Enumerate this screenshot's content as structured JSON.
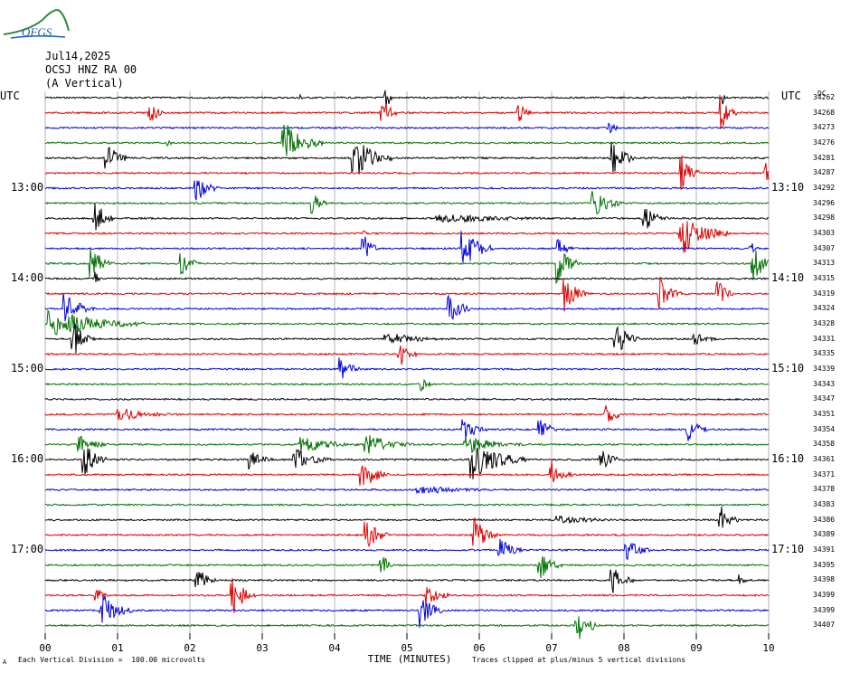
{
  "logo_text": "OFGS",
  "header": {
    "date": "Jul14,2025",
    "station": "OCSJ HNZ RA 00",
    "component": "(A Vertical)"
  },
  "utc_left": "UTC",
  "utc_right": "UTC",
  "right_col_header": "DC",
  "left_time_labels": [
    "13:00",
    "14:00",
    "15:00",
    "16:00",
    "17:00"
  ],
  "right_time_labels": [
    "13:10",
    "14:10",
    "15:10",
    "16:10",
    "17:10"
  ],
  "x_tick_labels": [
    "00",
    "01",
    "02",
    "03",
    "04",
    "05",
    "06",
    "07",
    "08",
    "09",
    "10"
  ],
  "x_axis_title": "TIME (MINUTES)",
  "footer_left": "Each Vertical Division =  100.00 microvolts",
  "footer_right": "Traces clipped at plus/minus 5 vertical divisions",
  "corner_mark": "A",
  "colors": {
    "black": "#000000",
    "red": "#e00000",
    "blue": "#0000e0",
    "green": "#007000",
    "grid": "#808080"
  },
  "chart_data": {
    "type": "line",
    "title": "OCSJ HNZ RA 00",
    "xlabel": "TIME (MINUTES)",
    "xlim": [
      0,
      10
    ],
    "trace_minutes": 10,
    "color_cycle": [
      "black",
      "red",
      "blue",
      "green"
    ],
    "trace_dc_values": [
      "34262",
      "34268",
      "34273",
      "34276",
      "34281",
      "34287",
      "34292",
      "34296",
      "34298",
      "34303",
      "34307",
      "34313",
      "34315",
      "34319",
      "34324",
      "34328",
      "34331",
      "34335",
      "34339",
      "34343",
      "34347",
      "34351",
      "34354",
      "34358",
      "34361",
      "34371",
      "34378",
      "34383",
      "34386",
      "34389",
      "34391",
      "34395",
      "34398",
      "34399",
      "34399",
      "34407"
    ],
    "events": [
      {
        "trace": 0,
        "minute": 4.7,
        "amp": 1.0,
        "dur": 0.1
      },
      {
        "trace": 0,
        "minute": 3.5,
        "amp": 0.4,
        "dur": 0.05
      },
      {
        "trace": 0,
        "minute": 9.35,
        "amp": 0.5,
        "dur": 0.05
      },
      {
        "trace": 1,
        "minute": 1.45,
        "amp": 0.6,
        "dur": 0.2
      },
      {
        "trace": 1,
        "minute": 4.65,
        "amp": 0.9,
        "dur": 0.2
      },
      {
        "trace": 1,
        "minute": 6.55,
        "amp": 0.5,
        "dur": 0.2
      },
      {
        "trace": 1,
        "minute": 9.35,
        "amp": 0.9,
        "dur": 0.2
      },
      {
        "trace": 2,
        "minute": 7.8,
        "amp": 0.3,
        "dur": 0.2
      },
      {
        "trace": 3,
        "minute": 3.35,
        "amp": 1.0,
        "dur": 0.5
      },
      {
        "trace": 3,
        "minute": 1.7,
        "amp": 0.2,
        "dur": 0.1
      },
      {
        "trace": 4,
        "minute": 0.85,
        "amp": 1.0,
        "dur": 0.3
      },
      {
        "trace": 4,
        "minute": 4.3,
        "amp": 1.0,
        "dur": 0.5
      },
      {
        "trace": 4,
        "minute": 7.85,
        "amp": 1.0,
        "dur": 0.3
      },
      {
        "trace": 5,
        "minute": 8.8,
        "amp": 0.9,
        "dur": 0.25
      },
      {
        "trace": 5,
        "minute": 9.95,
        "amp": 0.8,
        "dur": 0.15
      },
      {
        "trace": 6,
        "minute": 2.1,
        "amp": 0.7,
        "dur": 0.3
      },
      {
        "trace": 7,
        "minute": 3.7,
        "amp": 0.6,
        "dur": 0.2
      },
      {
        "trace": 7,
        "minute": 7.6,
        "amp": 0.7,
        "dur": 0.4
      },
      {
        "trace": 8,
        "minute": 0.7,
        "amp": 0.9,
        "dur": 0.25
      },
      {
        "trace": 8,
        "minute": 5.7,
        "amp": 0.2,
        "dur": 2.0
      },
      {
        "trace": 8,
        "minute": 8.3,
        "amp": 0.6,
        "dur": 0.3
      },
      {
        "trace": 9,
        "minute": 8.85,
        "amp": 1.0,
        "dur": 0.6
      },
      {
        "trace": 9,
        "minute": 4.4,
        "amp": 0.2,
        "dur": 0.1
      },
      {
        "trace": 10,
        "minute": 4.4,
        "amp": 0.8,
        "dur": 0.2
      },
      {
        "trace": 10,
        "minute": 5.8,
        "amp": 1.0,
        "dur": 0.4
      },
      {
        "trace": 10,
        "minute": 7.1,
        "amp": 0.5,
        "dur": 0.2
      },
      {
        "trace": 10,
        "minute": 9.75,
        "amp": 0.4,
        "dur": 0.1
      },
      {
        "trace": 11,
        "minute": 0.65,
        "amp": 0.8,
        "dur": 0.3
      },
      {
        "trace": 11,
        "minute": 1.9,
        "amp": 0.6,
        "dur": 0.25
      },
      {
        "trace": 11,
        "minute": 7.1,
        "amp": 1.0,
        "dur": 0.3
      },
      {
        "trace": 11,
        "minute": 9.8,
        "amp": 0.9,
        "dur": 0.3
      },
      {
        "trace": 12,
        "minute": 0.7,
        "amp": 0.4,
        "dur": 0.1
      },
      {
        "trace": 13,
        "minute": 7.2,
        "amp": 0.9,
        "dur": 0.3
      },
      {
        "trace": 13,
        "minute": 8.5,
        "amp": 0.9,
        "dur": 0.3
      },
      {
        "trace": 13,
        "minute": 9.3,
        "amp": 0.8,
        "dur": 0.2
      },
      {
        "trace": 14,
        "minute": 0.3,
        "amp": 0.8,
        "dur": 0.4
      },
      {
        "trace": 14,
        "minute": 5.6,
        "amp": 0.8,
        "dur": 0.3
      },
      {
        "trace": 15,
        "minute": 0.2,
        "amp": 0.7,
        "dur": 1.2
      },
      {
        "trace": 16,
        "minute": 0.4,
        "amp": 0.9,
        "dur": 0.3
      },
      {
        "trace": 16,
        "minute": 4.8,
        "amp": 0.3,
        "dur": 0.8
      },
      {
        "trace": 16,
        "minute": 7.9,
        "amp": 0.9,
        "dur": 0.3
      },
      {
        "trace": 16,
        "minute": 9.0,
        "amp": 0.3,
        "dur": 0.4
      },
      {
        "trace": 17,
        "minute": 4.9,
        "amp": 0.7,
        "dur": 0.25
      },
      {
        "trace": 18,
        "minute": 4.1,
        "amp": 0.7,
        "dur": 0.25
      },
      {
        "trace": 19,
        "minute": 5.2,
        "amp": 0.5,
        "dur": 0.15
      },
      {
        "trace": 21,
        "minute": 1.1,
        "amp": 0.3,
        "dur": 0.8
      },
      {
        "trace": 21,
        "minute": 7.75,
        "amp": 0.5,
        "dur": 0.3
      },
      {
        "trace": 22,
        "minute": 5.8,
        "amp": 0.6,
        "dur": 0.3
      },
      {
        "trace": 22,
        "minute": 6.85,
        "amp": 0.7,
        "dur": 0.25
      },
      {
        "trace": 22,
        "minute": 8.9,
        "amp": 0.6,
        "dur": 0.3
      },
      {
        "trace": 23,
        "minute": 0.5,
        "amp": 0.5,
        "dur": 0.4
      },
      {
        "trace": 23,
        "minute": 3.6,
        "amp": 0.4,
        "dur": 0.8
      },
      {
        "trace": 23,
        "minute": 4.5,
        "amp": 0.5,
        "dur": 0.6
      },
      {
        "trace": 23,
        "minute": 5.9,
        "amp": 0.4,
        "dur": 0.8
      },
      {
        "trace": 24,
        "minute": 0.55,
        "amp": 0.9,
        "dur": 0.3
      },
      {
        "trace": 24,
        "minute": 2.85,
        "amp": 0.5,
        "dur": 0.3
      },
      {
        "trace": 24,
        "minute": 3.5,
        "amp": 0.5,
        "dur": 0.5
      },
      {
        "trace": 24,
        "minute": 5.95,
        "amp": 1.0,
        "dur": 0.7
      },
      {
        "trace": 24,
        "minute": 7.7,
        "amp": 0.5,
        "dur": 0.3
      },
      {
        "trace": 25,
        "minute": 4.4,
        "amp": 0.8,
        "dur": 0.35
      },
      {
        "trace": 25,
        "minute": 7.0,
        "amp": 0.8,
        "dur": 0.3
      },
      {
        "trace": 26,
        "minute": 5.3,
        "amp": 0.2,
        "dur": 1.2
      },
      {
        "trace": 28,
        "minute": 7.2,
        "amp": 0.2,
        "dur": 1.0
      },
      {
        "trace": 28,
        "minute": 9.35,
        "amp": 0.7,
        "dur": 0.25
      },
      {
        "trace": 29,
        "minute": 4.45,
        "amp": 0.8,
        "dur": 0.3
      },
      {
        "trace": 29,
        "minute": 5.95,
        "amp": 0.9,
        "dur": 0.3
      },
      {
        "trace": 30,
        "minute": 6.3,
        "amp": 0.6,
        "dur": 0.3
      },
      {
        "trace": 30,
        "minute": 8.05,
        "amp": 0.7,
        "dur": 0.3
      },
      {
        "trace": 31,
        "minute": 4.65,
        "amp": 0.6,
        "dur": 0.2
      },
      {
        "trace": 31,
        "minute": 6.85,
        "amp": 0.7,
        "dur": 0.3
      },
      {
        "trace": 32,
        "minute": 2.1,
        "amp": 0.7,
        "dur": 0.25
      },
      {
        "trace": 32,
        "minute": 7.85,
        "amp": 0.7,
        "dur": 0.3
      },
      {
        "trace": 32,
        "minute": 9.6,
        "amp": 0.4,
        "dur": 0.1
      },
      {
        "trace": 33,
        "minute": 2.6,
        "amp": 1.0,
        "dur": 0.3
      },
      {
        "trace": 33,
        "minute": 5.3,
        "amp": 0.6,
        "dur": 0.3
      },
      {
        "trace": 33,
        "minute": 0.7,
        "amp": 0.4,
        "dur": 0.2
      },
      {
        "trace": 34,
        "minute": 0.8,
        "amp": 0.9,
        "dur": 0.4
      },
      {
        "trace": 34,
        "minute": 5.2,
        "amp": 0.9,
        "dur": 0.3
      },
      {
        "trace": 35,
        "minute": 7.35,
        "amp": 1.0,
        "dur": 0.3
      }
    ]
  }
}
